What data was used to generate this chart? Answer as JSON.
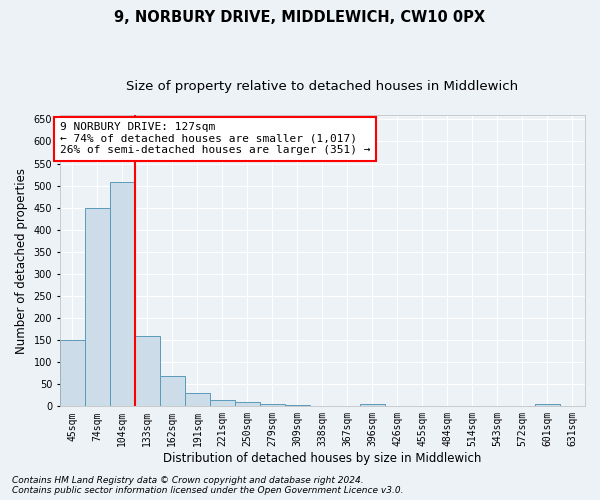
{
  "title": "9, NORBURY DRIVE, MIDDLEWICH, CW10 0PX",
  "subtitle": "Size of property relative to detached houses in Middlewich",
  "xlabel": "Distribution of detached houses by size in Middlewich",
  "ylabel": "Number of detached properties",
  "footer_line1": "Contains HM Land Registry data © Crown copyright and database right 2024.",
  "footer_line2": "Contains public sector information licensed under the Open Government Licence v3.0.",
  "bin_labels": [
    "45sqm",
    "74sqm",
    "104sqm",
    "133sqm",
    "162sqm",
    "191sqm",
    "221sqm",
    "250sqm",
    "279sqm",
    "309sqm",
    "338sqm",
    "367sqm",
    "396sqm",
    "426sqm",
    "455sqm",
    "484sqm",
    "514sqm",
    "543sqm",
    "572sqm",
    "601sqm",
    "631sqm"
  ],
  "values": [
    150,
    450,
    508,
    160,
    68,
    30,
    14,
    10,
    5,
    2,
    0,
    0,
    5,
    0,
    0,
    0,
    0,
    0,
    0,
    5,
    0
  ],
  "bar_color": "#ccdce8",
  "bar_edge_color": "#5a9aba",
  "annotation_line1": "9 NORBURY DRIVE: 127sqm",
  "annotation_line2": "← 74% of detached houses are smaller (1,017)",
  "annotation_line3": "26% of semi-detached houses are larger (351) →",
  "annotation_box_color": "white",
  "annotation_box_edge": "red",
  "ylim": [
    0,
    660
  ],
  "yticks": [
    0,
    50,
    100,
    150,
    200,
    250,
    300,
    350,
    400,
    450,
    500,
    550,
    600,
    650
  ],
  "background_color": "#edf2f7",
  "grid_color": "white",
  "title_fontsize": 10.5,
  "subtitle_fontsize": 9.5,
  "axis_label_fontsize": 8.5,
  "tick_fontsize": 7,
  "footer_fontsize": 6.5,
  "annotation_fontsize": 8
}
